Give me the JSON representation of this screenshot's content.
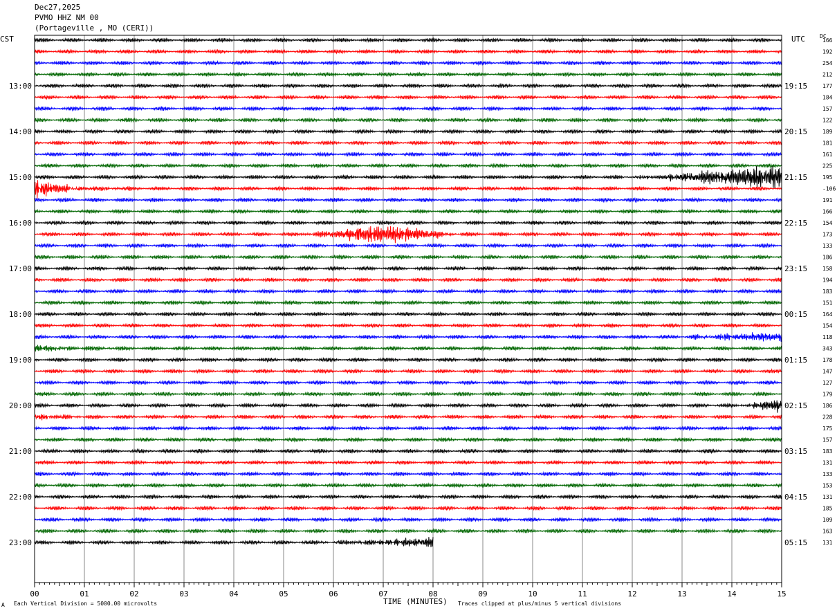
{
  "header": {
    "date": "Dec27,2025",
    "station": "PVMO HHZ NM 00",
    "location": "(Portageville , MO (CERI))"
  },
  "left_timezone": "CST",
  "right_timezone": "UTC",
  "dc_label": "DC",
  "footer": {
    "scale": "Each Vertical Division = 5000.00 microvolts",
    "xlabel": "TIME (MINUTES)",
    "clip_note": "Traces clipped at plus/minus 5 vertical divisions",
    "corner_mark": "A"
  },
  "chart_data": {
    "type": "line",
    "title": "PVMO HHZ NM 00",
    "xlabel": "TIME (MINUTES)",
    "x_ticks": [
      "00",
      "01",
      "02",
      "03",
      "04",
      "05",
      "06",
      "07",
      "08",
      "09",
      "10",
      "11",
      "12",
      "13",
      "14",
      "15"
    ],
    "xlim": [
      0,
      15
    ],
    "grid": true,
    "trace_colors": [
      "#000000",
      "#ff0000",
      "#0000ff",
      "#006600"
    ],
    "trace_count": 45,
    "last_trace_end_minute": 8,
    "left_hour_labels": [
      {
        "trace": 4,
        "label": "13:00"
      },
      {
        "trace": 8,
        "label": "14:00"
      },
      {
        "trace": 12,
        "label": "15:00"
      },
      {
        "trace": 16,
        "label": "16:00"
      },
      {
        "trace": 20,
        "label": "17:00"
      },
      {
        "trace": 24,
        "label": "18:00"
      },
      {
        "trace": 28,
        "label": "19:00"
      },
      {
        "trace": 32,
        "label": "20:00"
      },
      {
        "trace": 36,
        "label": "21:00"
      },
      {
        "trace": 40,
        "label": "22:00"
      },
      {
        "trace": 44,
        "label": "23:00"
      }
    ],
    "right_hour_labels": [
      {
        "trace": 4,
        "label": "19:15"
      },
      {
        "trace": 8,
        "label": "20:15"
      },
      {
        "trace": 12,
        "label": "21:15"
      },
      {
        "trace": 16,
        "label": "22:15"
      },
      {
        "trace": 20,
        "label": "23:15"
      },
      {
        "trace": 24,
        "label": "00:15"
      },
      {
        "trace": 28,
        "label": "01:15"
      },
      {
        "trace": 32,
        "label": "02:15"
      },
      {
        "trace": 36,
        "label": "03:15"
      },
      {
        "trace": 40,
        "label": "04:15"
      },
      {
        "trace": 44,
        "label": "05:15"
      }
    ],
    "dc_offsets": [
      "166",
      "192",
      "254",
      "212",
      "177",
      "184",
      "157",
      "122",
      "189",
      "181",
      "161",
      "225",
      "195",
      "-106",
      "191",
      "166",
      "154",
      "173",
      "133",
      "186",
      "158",
      "194",
      "183",
      "151",
      "164",
      "154",
      "118",
      "343",
      "178",
      "147",
      "127",
      "179",
      "186",
      "228",
      "175",
      "157",
      "183",
      "131",
      "133",
      "153",
      "131",
      "185",
      "109",
      "163",
      "131"
    ],
    "events": [
      {
        "trace": 13,
        "start": 0.0,
        "end": 2.0,
        "peak": 0.1,
        "amp": 2.8,
        "shape": "decay"
      },
      {
        "trace": 17,
        "start": 5.0,
        "end": 9.5,
        "peak": 7.0,
        "amp": 3.0,
        "shape": "burst"
      },
      {
        "trace": 12,
        "start": 10.5,
        "end": 15.0,
        "peak": 14.5,
        "amp": 5.0,
        "shape": "grow"
      },
      {
        "trace": 27,
        "start": 0.0,
        "end": 2.0,
        "peak": 0.1,
        "amp": 1.2,
        "shape": "decay"
      },
      {
        "trace": 26,
        "start": 11.5,
        "end": 15.0,
        "peak": 14.7,
        "amp": 1.8,
        "shape": "grow"
      },
      {
        "trace": 33,
        "start": 0.0,
        "end": 1.5,
        "peak": 0.05,
        "amp": 1.0,
        "shape": "decay"
      },
      {
        "trace": 32,
        "start": 13.8,
        "end": 15.0,
        "peak": 14.8,
        "amp": 3.0,
        "shape": "grow"
      },
      {
        "trace": 44,
        "start": 4.5,
        "end": 8.0,
        "peak": 8.0,
        "amp": 1.6,
        "shape": "grow"
      }
    ]
  }
}
